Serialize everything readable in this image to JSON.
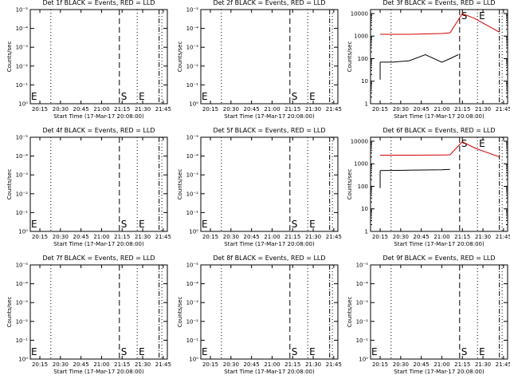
{
  "chart_data": [
    {
      "type": "line",
      "title": "Det 1f BLACK = Events, RED = LLD",
      "ylabel": "Counts/sec",
      "xlabel": "Start Time (17-Mar-17 20:08:00)",
      "x_ticks": [
        "20:15",
        "20:30",
        "20:45",
        "21:00",
        "21:15",
        "21:30",
        "21:45"
      ],
      "y_ticks": [
        "10⁰",
        "10⁻¹",
        "10⁻²",
        "10⁻³",
        "10⁻⁴",
        "10⁻⁵"
      ],
      "markers": {
        "S": "S",
        "E": "E",
        "E_left": "E"
      },
      "has_data": false
    },
    {
      "type": "line",
      "title": "Det 2f BLACK = Events, RED = LLD",
      "ylabel": "Counts/sec",
      "xlabel": "Start Time (17-Mar-17 20:08:00)",
      "x_ticks": [
        "20:15",
        "20:30",
        "20:45",
        "21:00",
        "21:15",
        "21:30",
        "21:45"
      ],
      "y_ticks": [
        "10⁰",
        "10⁻¹",
        "10⁻²",
        "10⁻³",
        "10⁻⁴",
        "10⁻⁵"
      ],
      "markers": {
        "S": "S",
        "E": "E",
        "E_left": "E"
      },
      "has_data": false
    },
    {
      "type": "line",
      "title": "Det 3f BLACK = Events, RED = LLD",
      "ylabel": "Counts/sec",
      "xlabel": "Start Time (17-Mar-17 20:08:00)",
      "x_ticks": [
        "20:15",
        "20:30",
        "20:45",
        "21:00",
        "21:15",
        "21:30",
        "21:45"
      ],
      "y_ticks": [
        "1",
        "10",
        "100",
        "1000",
        "10000"
      ],
      "markers": {
        "S": "S",
        "E": "E"
      },
      "has_data": true,
      "series": [
        {
          "color": "#000000",
          "x": [
            20.25,
            20.4,
            20.6,
            20.8,
            21.0,
            21.1,
            21.2
          ],
          "y": [
            70,
            70,
            80,
            150,
            70,
            100,
            150
          ]
        },
        {
          "color": "#d00000",
          "x": [
            20.25,
            20.6,
            21.0,
            21.1,
            21.25,
            21.4,
            21.7
          ],
          "y": [
            1200,
            1200,
            1300,
            1400,
            10000,
            6000,
            1500
          ]
        }
      ]
    },
    {
      "type": "line",
      "title": "Det 4f BLACK = Events, RED = LLD",
      "ylabel": "Counts/sec",
      "xlabel": "Start Time (17-Mar-17 20:08:00)",
      "x_ticks": [
        "20:15",
        "20:30",
        "20:45",
        "21:00",
        "21:15",
        "21:30",
        "21:45"
      ],
      "y_ticks": [
        "10⁰",
        "10⁻¹",
        "10⁻²",
        "10⁻³",
        "10⁻⁴",
        "10⁻⁵"
      ],
      "markers": {
        "S": "S",
        "E": "E",
        "E_left": "E"
      },
      "has_data": false
    },
    {
      "type": "line",
      "title": "Det 5f BLACK = Events, RED = LLD",
      "ylabel": "Counts/sec",
      "xlabel": "Start Time (17-Mar-17 20:08:00)",
      "x_ticks": [
        "20:15",
        "20:30",
        "20:45",
        "21:00",
        "21:15",
        "21:30",
        "21:45"
      ],
      "y_ticks": [
        "10⁰",
        "10⁻¹",
        "10⁻²",
        "10⁻³",
        "10⁻⁴",
        "10⁻⁵"
      ],
      "markers": {
        "S": "S",
        "E": "E",
        "E_left": "E"
      },
      "has_data": false
    },
    {
      "type": "line",
      "title": "Det 6f BLACK = Events, RED = LLD",
      "ylabel": "Counts/sec",
      "xlabel": "Start Time (17-Mar-17 20:08:00)",
      "x_ticks": [
        "20:15",
        "20:30",
        "20:45",
        "21:00",
        "21:15",
        "21:30",
        "21:45"
      ],
      "y_ticks": [
        "1",
        "10",
        "100",
        "1000",
        "10000"
      ],
      "markers": {
        "S": "S",
        "E": "E"
      },
      "has_data": true,
      "series": [
        {
          "color": "#000000",
          "x": [
            20.25,
            20.6,
            21.0,
            21.1
          ],
          "y": [
            500,
            520,
            540,
            560
          ]
        },
        {
          "color": "#d00000",
          "x": [
            20.25,
            20.6,
            21.0,
            21.1,
            21.25,
            21.4,
            21.7
          ],
          "y": [
            2400,
            2400,
            2450,
            2500,
            9500,
            5000,
            2000
          ]
        }
      ]
    },
    {
      "type": "line",
      "title": "Det 7f BLACK = Events, RED = LLD",
      "ylabel": "Counts/sec",
      "xlabel": "Start Time (17-Mar-17 20:08:00)",
      "x_ticks": [
        "20:15",
        "20:30",
        "20:45",
        "21:00",
        "21:15",
        "21:30",
        "21:45"
      ],
      "y_ticks": [
        "10⁰",
        "10⁻¹",
        "10⁻²",
        "10⁻³",
        "10⁻⁴",
        "10⁻⁵"
      ],
      "markers": {
        "S": "S",
        "E": "E",
        "E_left": "E"
      },
      "has_data": false
    },
    {
      "type": "line",
      "title": "Det 8f BLACK = Events, RED = LLD",
      "ylabel": "Counts/sec",
      "xlabel": "Start Time (17-Mar-17 20:08:00)",
      "x_ticks": [
        "20:15",
        "20:30",
        "20:45",
        "21:00",
        "21:15",
        "21:30",
        "21:45"
      ],
      "y_ticks": [
        "10⁰",
        "10⁻¹",
        "10⁻²",
        "10⁻³",
        "10⁻⁴",
        "10⁻⁵"
      ],
      "markers": {
        "S": "S",
        "E": "E",
        "E_left": "E"
      },
      "has_data": false
    },
    {
      "type": "line",
      "title": "Det 9f BLACK = Events, RED = LLD",
      "ylabel": "Counts/sec",
      "xlabel": "Start Time (17-Mar-17 20:08:00)",
      "x_ticks": [
        "20:15",
        "20:30",
        "20:45",
        "21:00",
        "21:15",
        "21:30",
        "21:45"
      ],
      "y_ticks": [
        "10⁰",
        "10⁻¹",
        "10⁻²",
        "10⁻³",
        "10⁻⁴",
        "10⁻⁵"
      ],
      "markers": {
        "S": "S",
        "E": "E",
        "E_left": "E"
      },
      "has_data": false
    }
  ]
}
